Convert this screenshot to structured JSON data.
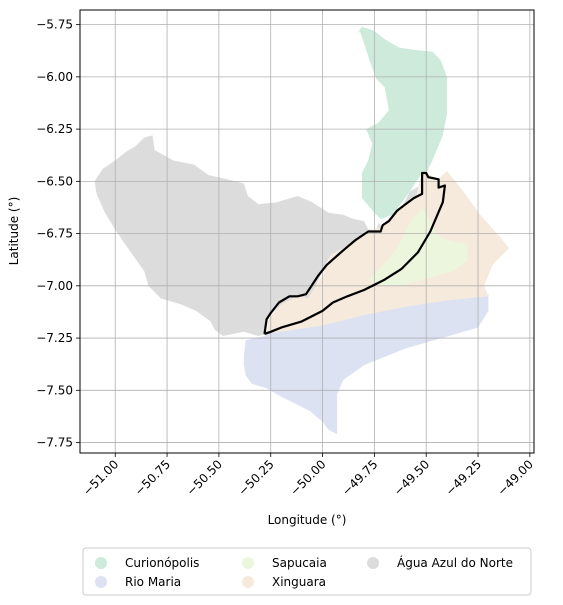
{
  "map": {
    "xlabel": "Longitude (°)",
    "ylabel": "Latitude (°)",
    "xlim": [
      -51.17,
      -48.98
    ],
    "ylim": [
      -7.8,
      -5.68
    ],
    "x_ticks": [
      {
        "value": -51.0,
        "label": "−51.00"
      },
      {
        "value": -50.75,
        "label": "−50.75"
      },
      {
        "value": -50.5,
        "label": "−50.50"
      },
      {
        "value": -50.25,
        "label": "−50.25"
      },
      {
        "value": -50.0,
        "label": "−50.00"
      },
      {
        "value": -49.75,
        "label": "−49.75"
      },
      {
        "value": -49.5,
        "label": "−49.50"
      },
      {
        "value": -49.25,
        "label": "−49.25"
      },
      {
        "value": -49.0,
        "label": "−49.00"
      }
    ],
    "y_ticks": [
      {
        "value": -5.75,
        "label": "−5.75"
      },
      {
        "value": -6.0,
        "label": "−6.00"
      },
      {
        "value": -6.25,
        "label": "−6.25"
      },
      {
        "value": -6.5,
        "label": "−6.50"
      },
      {
        "value": -6.75,
        "label": "−6.75"
      },
      {
        "value": -7.0,
        "label": "−7.00"
      },
      {
        "value": -7.25,
        "label": "−7.25"
      },
      {
        "value": -7.5,
        "label": "−7.50"
      },
      {
        "value": -7.75,
        "label": "−7.75"
      }
    ],
    "grid": true,
    "legend": {
      "placement": "bottom-center",
      "items": [
        {
          "id": "curionopolis",
          "label": "Curionópolis",
          "color": "#cdeadb"
        },
        {
          "id": "rio-maria",
          "label": "Rio Maria",
          "color": "#dde2f2"
        },
        {
          "id": "sapucaia",
          "label": "Sapucaia",
          "color": "#ecf6dc"
        },
        {
          "id": "xinguara",
          "label": "Xinguara",
          "color": "#f5eadb"
        },
        {
          "id": "agua-azul",
          "label": "Água Azul do Norte",
          "color": "#dcdcdc"
        }
      ]
    },
    "regions": [
      {
        "id": "agua-azul",
        "color": "#dcdcdc",
        "points": [
          [
            -51.06,
            -6.44
          ],
          [
            -51.0,
            -6.4
          ],
          [
            -50.95,
            -6.36
          ],
          [
            -50.9,
            -6.33
          ],
          [
            -50.86,
            -6.29
          ],
          [
            -50.82,
            -6.28
          ],
          [
            -50.81,
            -6.35
          ],
          [
            -50.72,
            -6.4
          ],
          [
            -50.62,
            -6.42
          ],
          [
            -50.55,
            -6.47
          ],
          [
            -50.46,
            -6.49
          ],
          [
            -50.38,
            -6.51
          ],
          [
            -50.36,
            -6.57
          ],
          [
            -50.31,
            -6.61
          ],
          [
            -50.22,
            -6.6
          ],
          [
            -50.12,
            -6.57
          ],
          [
            -50.05,
            -6.6
          ],
          [
            -49.97,
            -6.65
          ],
          [
            -49.9,
            -6.66
          ],
          [
            -49.85,
            -6.68
          ],
          [
            -49.8,
            -6.69
          ],
          [
            -49.78,
            -6.73
          ],
          [
            -49.74,
            -6.73
          ],
          [
            -49.73,
            -6.7
          ],
          [
            -49.71,
            -6.72
          ],
          [
            -49.69,
            -6.69
          ],
          [
            -49.66,
            -6.66
          ],
          [
            -49.62,
            -6.63
          ],
          [
            -49.58,
            -6.55
          ],
          [
            -49.53,
            -6.52
          ],
          [
            -49.52,
            -6.46
          ],
          [
            -49.5,
            -6.46
          ],
          [
            -49.49,
            -6.49
          ],
          [
            -49.44,
            -6.49
          ],
          [
            -49.44,
            -6.53
          ],
          [
            -49.52,
            -6.46
          ],
          [
            -49.55,
            -6.58
          ],
          [
            -49.66,
            -6.66
          ],
          [
            -49.72,
            -6.72
          ],
          [
            -49.79,
            -6.74
          ],
          [
            -49.84,
            -6.79
          ],
          [
            -49.96,
            -6.85
          ],
          [
            -50.01,
            -6.95
          ],
          [
            -50.05,
            -7.04
          ],
          [
            -50.07,
            -7.06
          ],
          [
            -50.12,
            -7.05
          ],
          [
            -50.2,
            -7.09
          ],
          [
            -50.27,
            -7.16
          ],
          [
            -50.27,
            -7.23
          ],
          [
            -50.31,
            -7.24
          ],
          [
            -50.38,
            -7.22
          ],
          [
            -50.48,
            -7.24
          ],
          [
            -50.52,
            -7.21
          ],
          [
            -50.54,
            -7.17
          ],
          [
            -50.61,
            -7.12
          ],
          [
            -50.68,
            -7.09
          ],
          [
            -50.78,
            -7.06
          ],
          [
            -50.84,
            -7.0
          ],
          [
            -50.86,
            -6.93
          ],
          [
            -50.91,
            -6.86
          ],
          [
            -50.96,
            -6.79
          ],
          [
            -51.0,
            -6.73
          ],
          [
            -51.05,
            -6.65
          ],
          [
            -51.09,
            -6.56
          ],
          [
            -51.1,
            -6.5
          ]
        ]
      },
      {
        "id": "rio-maria",
        "color": "#dde2f2",
        "points": [
          [
            -50.37,
            -7.26
          ],
          [
            -50.28,
            -7.24
          ],
          [
            -50.26,
            -7.22
          ],
          [
            -50.0,
            -7.18
          ],
          [
            -49.8,
            -7.13
          ],
          [
            -49.6,
            -7.09
          ],
          [
            -49.4,
            -7.06
          ],
          [
            -49.2,
            -7.04
          ],
          [
            -49.2,
            -7.12
          ],
          [
            -49.25,
            -7.2
          ],
          [
            -49.6,
            -7.3
          ],
          [
            -49.8,
            -7.38
          ],
          [
            -49.9,
            -7.45
          ],
          [
            -49.93,
            -7.52
          ],
          [
            -49.93,
            -7.71
          ],
          [
            -49.97,
            -7.69
          ],
          [
            -50.0,
            -7.65
          ],
          [
            -50.06,
            -7.6
          ],
          [
            -50.12,
            -7.57
          ],
          [
            -50.2,
            -7.53
          ],
          [
            -50.27,
            -7.49
          ],
          [
            -50.34,
            -7.47
          ],
          [
            -50.37,
            -7.43
          ],
          [
            -50.38,
            -7.38
          ],
          [
            -50.38,
            -7.33
          ]
        ]
      },
      {
        "id": "xinguara",
        "color": "#f5eadb",
        "points": [
          [
            -50.27,
            -7.23
          ],
          [
            -50.26,
            -7.16
          ],
          [
            -50.2,
            -7.09
          ],
          [
            -50.12,
            -7.05
          ],
          [
            -50.07,
            -7.06
          ],
          [
            -50.0,
            -6.95
          ],
          [
            -49.96,
            -6.85
          ],
          [
            -49.84,
            -6.79
          ],
          [
            -49.79,
            -6.74
          ],
          [
            -49.72,
            -6.72
          ],
          [
            -49.66,
            -6.66
          ],
          [
            -49.6,
            -6.6
          ],
          [
            -49.55,
            -6.58
          ],
          [
            -49.53,
            -6.52
          ],
          [
            -49.52,
            -6.46
          ],
          [
            -49.5,
            -6.46
          ],
          [
            -49.44,
            -6.49
          ],
          [
            -49.4,
            -6.45
          ],
          [
            -49.32,
            -6.55
          ],
          [
            -49.24,
            -6.66
          ],
          [
            -49.14,
            -6.77
          ],
          [
            -49.1,
            -6.82
          ],
          [
            -49.18,
            -6.9
          ],
          [
            -49.22,
            -7.0
          ],
          [
            -49.2,
            -7.05
          ],
          [
            -49.4,
            -7.07
          ],
          [
            -49.6,
            -7.1
          ],
          [
            -49.8,
            -7.14
          ],
          [
            -50.0,
            -7.19
          ]
        ]
      },
      {
        "id": "sapucaia",
        "color": "#ecf6dc",
        "points": [
          [
            -49.78,
            -6.97
          ],
          [
            -49.7,
            -6.89
          ],
          [
            -49.64,
            -6.82
          ],
          [
            -49.6,
            -6.74
          ],
          [
            -49.57,
            -6.68
          ],
          [
            -49.52,
            -6.63
          ],
          [
            -49.47,
            -6.7
          ],
          [
            -49.45,
            -6.75
          ],
          [
            -49.4,
            -6.78
          ],
          [
            -49.36,
            -6.79
          ],
          [
            -49.3,
            -6.8
          ],
          [
            -49.3,
            -6.88
          ],
          [
            -49.37,
            -6.93
          ],
          [
            -49.48,
            -6.96
          ],
          [
            -49.55,
            -6.98
          ],
          [
            -49.62,
            -7.0
          ],
          [
            -49.7,
            -7.0
          ]
        ]
      },
      {
        "id": "curionopolis",
        "color": "#cdeadb",
        "points": [
          [
            -49.84,
            -5.8
          ],
          [
            -49.82,
            -5.78
          ],
          [
            -49.8,
            -5.84
          ],
          [
            -49.77,
            -5.93
          ],
          [
            -49.74,
            -6.01
          ],
          [
            -49.7,
            -6.05
          ],
          [
            -49.68,
            -6.16
          ],
          [
            -49.73,
            -6.22
          ],
          [
            -49.79,
            -6.25
          ],
          [
            -49.76,
            -6.32
          ],
          [
            -49.78,
            -6.4
          ],
          [
            -49.81,
            -6.46
          ],
          [
            -49.81,
            -6.58
          ],
          [
            -49.75,
            -6.65
          ],
          [
            -49.72,
            -6.68
          ],
          [
            -49.66,
            -6.66
          ],
          [
            -49.58,
            -6.55
          ],
          [
            -49.52,
            -6.46
          ],
          [
            -49.5,
            -6.46
          ],
          [
            -49.47,
            -6.4
          ],
          [
            -49.42,
            -6.28
          ],
          [
            -49.4,
            -6.18
          ],
          [
            -49.4,
            -6.0
          ],
          [
            -49.43,
            -5.92
          ],
          [
            -49.47,
            -5.88
          ],
          [
            -49.56,
            -5.87
          ],
          [
            -49.63,
            -5.86
          ],
          [
            -49.7,
            -5.82
          ],
          [
            -49.75,
            -5.78
          ],
          [
            -49.81,
            -5.76
          ]
        ]
      }
    ],
    "outline": [
      [
        -50.28,
        -7.23
      ],
      [
        -50.27,
        -7.16
      ],
      [
        -50.25,
        -7.13
      ],
      [
        -50.21,
        -7.08
      ],
      [
        -50.16,
        -7.05
      ],
      [
        -50.12,
        -7.05
      ],
      [
        -50.08,
        -7.04
      ],
      [
        -50.02,
        -6.95
      ],
      [
        -49.98,
        -6.9
      ],
      [
        -49.9,
        -6.83
      ],
      [
        -49.84,
        -6.78
      ],
      [
        -49.78,
        -6.74
      ],
      [
        -49.72,
        -6.74
      ],
      [
        -49.71,
        -6.71
      ],
      [
        -49.68,
        -6.69
      ],
      [
        -49.64,
        -6.64
      ],
      [
        -49.6,
        -6.61
      ],
      [
        -49.56,
        -6.58
      ],
      [
        -49.52,
        -6.56
      ],
      [
        -49.52,
        -6.46
      ],
      [
        -49.5,
        -6.46
      ],
      [
        -49.49,
        -6.48
      ],
      [
        -49.44,
        -6.49
      ],
      [
        -49.44,
        -6.53
      ],
      [
        -49.41,
        -6.52
      ],
      [
        -49.42,
        -6.6
      ],
      [
        -49.48,
        -6.74
      ],
      [
        -49.54,
        -6.84
      ],
      [
        -49.62,
        -6.92
      ],
      [
        -49.7,
        -6.97
      ],
      [
        -49.8,
        -7.02
      ],
      [
        -49.88,
        -7.05
      ],
      [
        -49.95,
        -7.08
      ],
      [
        -50.0,
        -7.12
      ],
      [
        -50.1,
        -7.17
      ],
      [
        -50.2,
        -7.2
      ],
      [
        -50.25,
        -7.22
      ],
      [
        -50.28,
        -7.23
      ]
    ]
  }
}
